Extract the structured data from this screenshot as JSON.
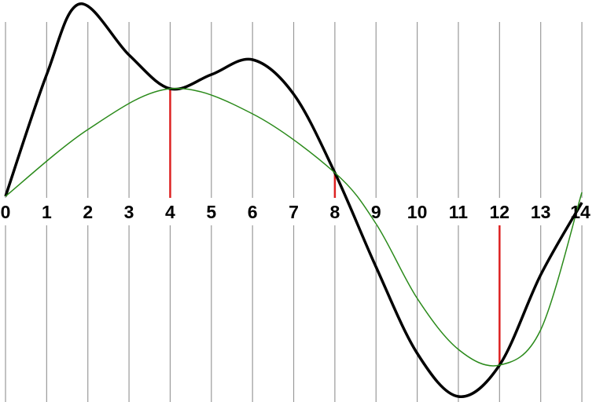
{
  "chart_data": {
    "type": "line",
    "x_ticks": [
      "0",
      "1",
      "2",
      "3",
      "4",
      "5",
      "6",
      "7",
      "8",
      "9",
      "10",
      "11",
      "12",
      "13",
      "14"
    ],
    "xlim": [
      0,
      14
    ],
    "grid": "vertical",
    "series": [
      {
        "color": "#000000",
        "x": [
          0,
          1,
          1.8,
          3,
          4,
          5,
          6,
          7,
          8,
          9,
          10,
          11,
          12,
          13,
          14
        ],
        "y": [
          0,
          1.55,
          2.45,
          1.8,
          1.37,
          1.55,
          1.74,
          1.3,
          0.3,
          -0.9,
          -2.0,
          -2.55,
          -2.15,
          -1.0,
          -0.08
        ]
      },
      {
        "color": "#2a8a1a",
        "x": [
          0,
          2,
          4,
          6,
          8,
          9,
          10,
          11,
          12,
          13,
          14
        ],
        "y": [
          0,
          0.85,
          1.37,
          1.05,
          0.3,
          -0.35,
          -1.3,
          -1.95,
          -2.15,
          -1.7,
          0.05
        ]
      }
    ],
    "markers": [
      {
        "x": 4,
        "y": 1.37,
        "color": "#dd2222"
      },
      {
        "x": 8,
        "y": 0.3,
        "color": "#dd2222"
      },
      {
        "x": 12,
        "y": -2.15,
        "color": "#dd2222"
      }
    ]
  }
}
